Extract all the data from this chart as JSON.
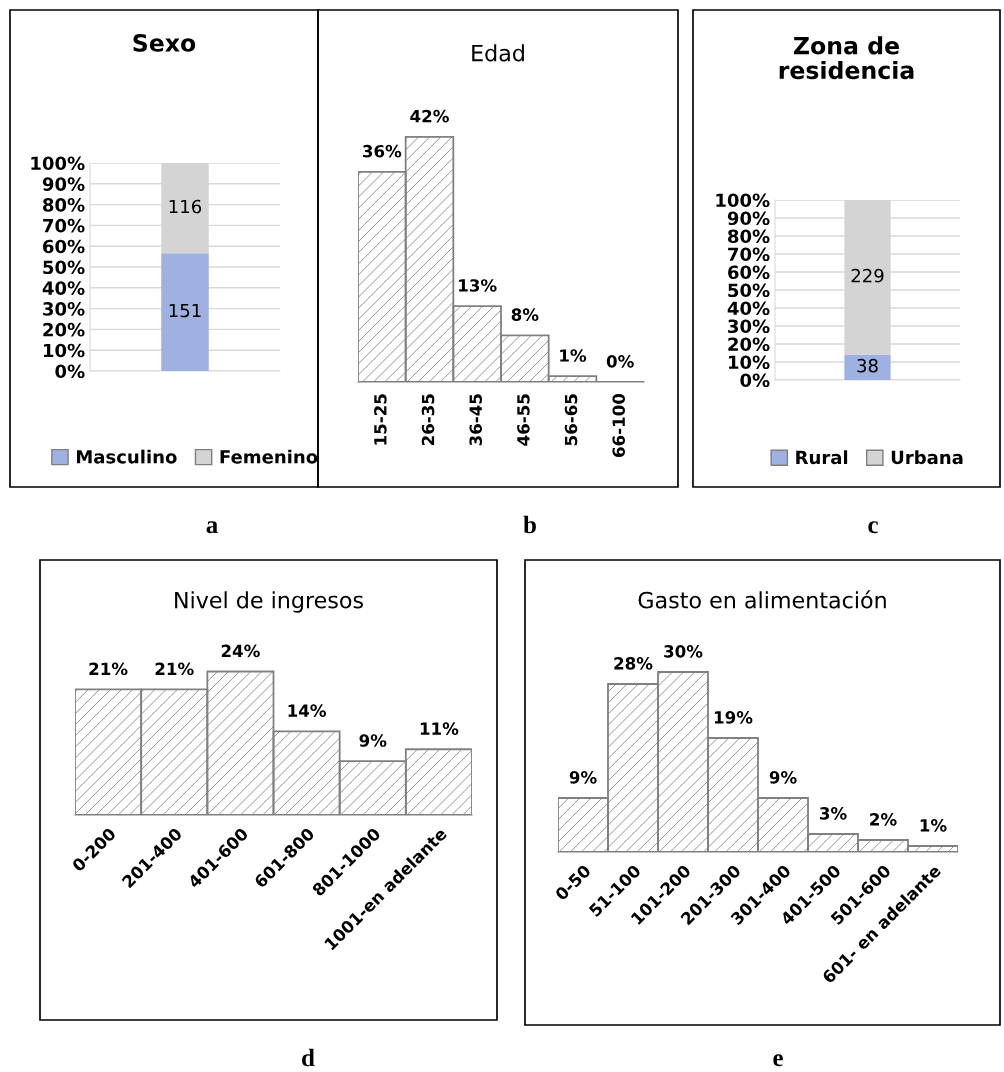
{
  "chart_data": [
    {
      "type": "bar",
      "title": "Sexo",
      "categories": [
        null
      ],
      "stacked": true,
      "legend": "bottom",
      "grid": "y",
      "ylim": [
        0,
        100
      ],
      "yticks": [
        {
          "value": 0,
          "label": "0%"
        },
        {
          "value": 10,
          "label": "10%"
        },
        {
          "value": 20,
          "label": "20%"
        },
        {
          "value": 30,
          "label": "30%"
        },
        {
          "value": 40,
          "label": "40%"
        },
        {
          "value": 50,
          "label": "50%"
        },
        {
          "value": 60,
          "label": "60%"
        },
        {
          "value": 70,
          "label": "70%"
        },
        {
          "value": 80,
          "label": "80%"
        },
        {
          "value": 90,
          "label": "90%"
        },
        {
          "value": 100,
          "label": "100%"
        }
      ],
      "series": [
        {
          "name": "Masculino",
          "color": "#9eb1e0",
          "values": [
            56.6
          ]
        },
        {
          "name": "Femenino",
          "color": "#d4d4d4",
          "values": [
            43.4
          ]
        }
      ],
      "annotations": [
        "151",
        "116",
        "a"
      ]
    },
    {
      "type": "bar",
      "title": "Edad",
      "categories": [
        "15-25",
        "26-35",
        "36-45",
        "46-55",
        "56-65",
        "66-100"
      ],
      "color": "#808080",
      "values": [
        36,
        42,
        13,
        8,
        1,
        0
      ],
      "value_labels": [
        "36%",
        "42%",
        "13%",
        "8%",
        "1%",
        "0%"
      ],
      "annotations": [
        "b"
      ]
    },
    {
      "type": "bar",
      "title": "Zona de\nresidencia",
      "categories": [
        null
      ],
      "stacked": true,
      "legend": "bottom",
      "grid": "y",
      "ylim": [
        0,
        100
      ],
      "yticks": [
        {
          "value": 0,
          "label": "0%"
        },
        {
          "value": 10,
          "label": "10%"
        },
        {
          "value": 20,
          "label": "20%"
        },
        {
          "value": 30,
          "label": "30%"
        },
        {
          "value": 40,
          "label": "40%"
        },
        {
          "value": 50,
          "label": "50%"
        },
        {
          "value": 60,
          "label": "60%"
        },
        {
          "value": 70,
          "label": "70%"
        },
        {
          "value": 80,
          "label": "80%"
        },
        {
          "value": 90,
          "label": "90%"
        },
        {
          "value": 100,
          "label": "100%"
        }
      ],
      "series": [
        {
          "name": "Rural",
          "color": "#9eb1e0",
          "values": [
            14.2
          ]
        },
        {
          "name": "Urbana",
          "color": "#d4d4d4",
          "values": [
            85.8
          ]
        }
      ],
      "annotations": [
        "38",
        "229",
        "c"
      ]
    },
    {
      "type": "bar",
      "title": "Nivel de ingresos",
      "categories": [
        "0-200",
        "201-400",
        "401-600",
        "601-800",
        "801-1000",
        "1001-en adelante"
      ],
      "color": "#808080",
      "values": [
        21,
        21,
        24,
        14,
        9,
        11
      ],
      "value_labels": [
        "21%",
        "21%",
        "24%",
        "14%",
        "9%",
        "11%"
      ],
      "annotations": [
        "d"
      ]
    },
    {
      "type": "bar",
      "title": "Gasto en alimentación",
      "categories": [
        "0-50",
        "51-100",
        "101-200",
        "201-300",
        "301-400",
        "401-500",
        "501-600",
        "601- en adelante"
      ],
      "color": "#808080",
      "values": [
        9,
        28,
        30,
        19,
        9,
        3,
        2,
        1
      ],
      "value_labels": [
        "9%",
        "28%",
        "30%",
        "19%",
        "9%",
        "3%",
        "2%",
        "1%"
      ],
      "annotations": [
        "e"
      ]
    }
  ]
}
